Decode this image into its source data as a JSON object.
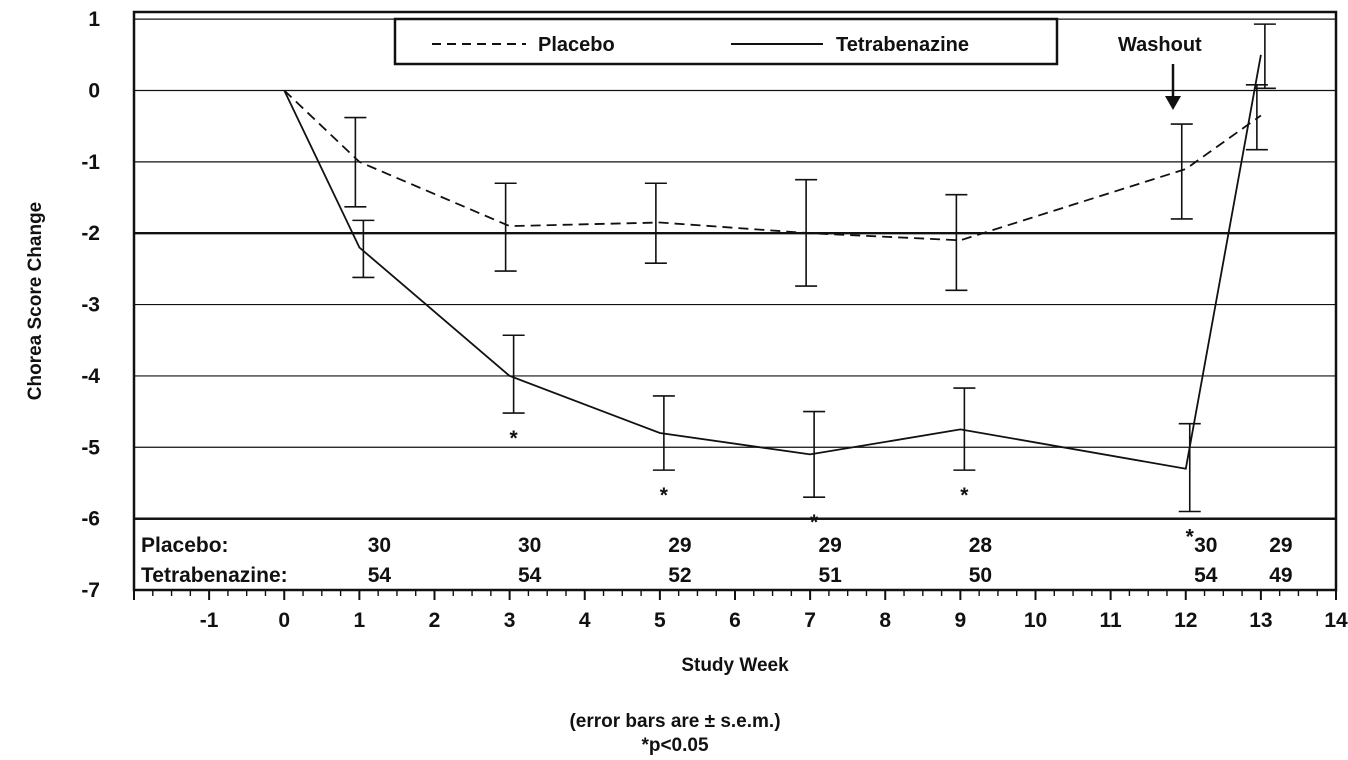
{
  "chart_data": {
    "type": "line",
    "xlabel": "Study Week",
    "ylabel": "Chorea Score Change",
    "xlim": [
      -2,
      14
    ],
    "ylim": [
      -7,
      1.1
    ],
    "x_ticks": [
      -1,
      0,
      1,
      2,
      3,
      4,
      5,
      6,
      7,
      8,
      9,
      10,
      11,
      12,
      13,
      14
    ],
    "y_ticks": [
      1,
      0,
      -1,
      -2,
      -3,
      -4,
      -5,
      -6,
      -7
    ],
    "grid": "horizontal",
    "legend_position": "top-center",
    "series": [
      {
        "name": "Placebo",
        "style": "dashed",
        "x": [
          0,
          1,
          3,
          5,
          7,
          9,
          12,
          13
        ],
        "y": [
          0,
          -1.0,
          -1.9,
          -1.85,
          -2.0,
          -2.1,
          -1.1,
          -0.35
        ],
        "err_low": [
          null,
          -1.63,
          -2.53,
          -2.42,
          -2.74,
          -2.8,
          -1.8,
          -0.83
        ],
        "err_high": [
          null,
          -0.38,
          -1.3,
          -1.3,
          -1.25,
          -1.46,
          -0.47,
          0.08
        ]
      },
      {
        "name": "Tetrabenazine",
        "style": "solid",
        "x": [
          0,
          1,
          3,
          5,
          7,
          9,
          12,
          13
        ],
        "y": [
          0,
          -2.2,
          -4.0,
          -4.8,
          -5.1,
          -4.75,
          -5.3,
          0.5
        ],
        "err_low": [
          null,
          -2.62,
          -4.52,
          -5.32,
          -5.7,
          -5.32,
          -5.9,
          0.03
        ],
        "err_high": [
          null,
          -1.82,
          -3.43,
          -4.28,
          -4.5,
          -4.17,
          -4.67,
          0.93
        ]
      }
    ],
    "significance_marks": [
      {
        "x": 3,
        "label": "*"
      },
      {
        "x": 5,
        "label": "*"
      },
      {
        "x": 7,
        "label": "*"
      },
      {
        "x": 9,
        "label": "*"
      },
      {
        "x": 12,
        "label": "*"
      }
    ],
    "sample_sizes": {
      "placebo_label": "Placebo:",
      "tetrabenazine_label": "Tetrabenazine:",
      "weeks": [
        1,
        3,
        5,
        7,
        9,
        12,
        13
      ],
      "placebo": [
        "30",
        "30",
        "29",
        "29",
        "28",
        "30",
        "29"
      ],
      "tetrabenazine": [
        "54",
        "54",
        "52",
        "51",
        "50",
        "54",
        "49"
      ]
    },
    "annotations": {
      "washout": "Washout",
      "error_note": "(error bars are ± s.e.m.)",
      "p_note": "*p<0.05"
    }
  }
}
